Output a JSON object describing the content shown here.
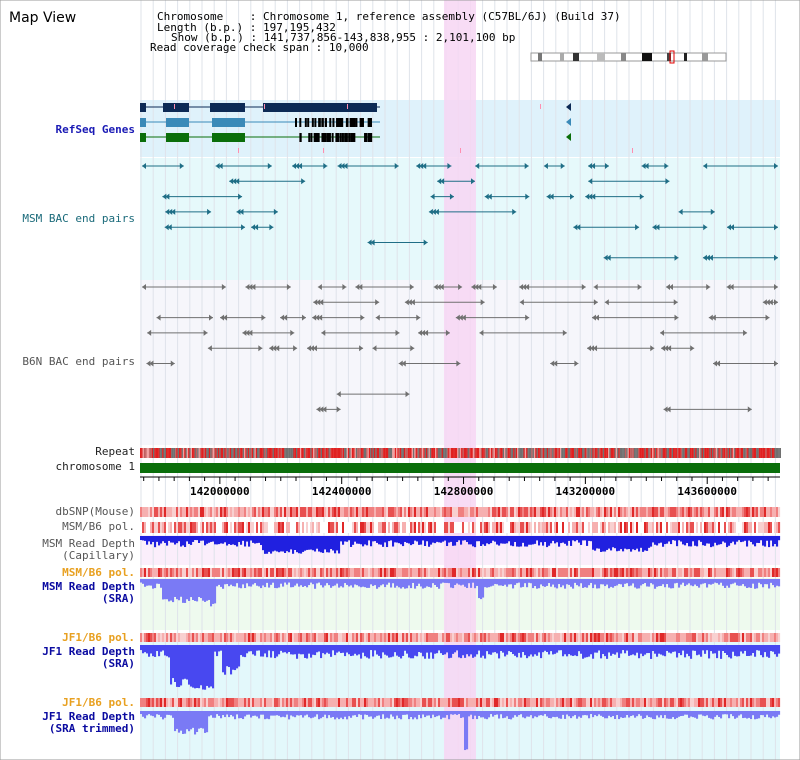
{
  "title": "Map View",
  "info": {
    "rows": [
      {
        "key": "Chromosome",
        "value": "Chromosome 1, reference assembly (C57BL/6J) (Build 37)"
      },
      {
        "key": "Length (b.p.)",
        "value": "197,195,432"
      },
      {
        "key": "Show (b.p.)",
        "value": "141,737,856-143,838,955 : 2,101,100 bp"
      },
      {
        "key": "Read coverage check span",
        "value": "10,000"
      }
    ]
  },
  "tracks": {
    "refseq_label": "RefSeq Genes",
    "msm_bac_label": "MSM BAC end pairs",
    "b6n_bac_label": "B6N BAC end pairs",
    "repeat_label": "Repeat",
    "chromosome_label": "chromosome 1",
    "dbsnp_label": "dbSNP(Mouse)",
    "msm_b6_pol_label": "MSM/B6 pol.",
    "msm_depth_cap_label": "MSM Read Depth\n(Capillary)",
    "msm_b6_pol2_label": "MSM/B6 pol.",
    "msm_depth_sra_label": "MSM Read Depth\n(SRA)",
    "jf1_b6_pol_label": "JF1/B6 pol.",
    "jf1_depth_sra_label": "JF1 Read Depth\n(SRA)",
    "jf1_b6_pol2_label": "JF1/B6 pol.",
    "jf1_depth_trim_label": "JF1 Read Depth\n(SRA trimmed)"
  },
  "axis": {
    "start": 141737856,
    "end": 143838955,
    "ticks": [
      {
        "value": 142000000,
        "label": "142000000"
      },
      {
        "value": 142400000,
        "label": "142400000"
      },
      {
        "value": 142800000,
        "label": "142800000"
      },
      {
        "value": 143200000,
        "label": "143200000"
      },
      {
        "value": 143600000,
        "label": "143600000"
      }
    ]
  },
  "colors": {
    "refseq_bg": "#dff2fb",
    "msm_bac_bg": "#e6f9fb",
    "highlight": "#f7d6f3",
    "chromosome_bar": "#0a6e0a",
    "depth_capillary": "#2020e0",
    "depth_sra": "#7a7af5",
    "depth_jf1": "#4848f0"
  }
}
